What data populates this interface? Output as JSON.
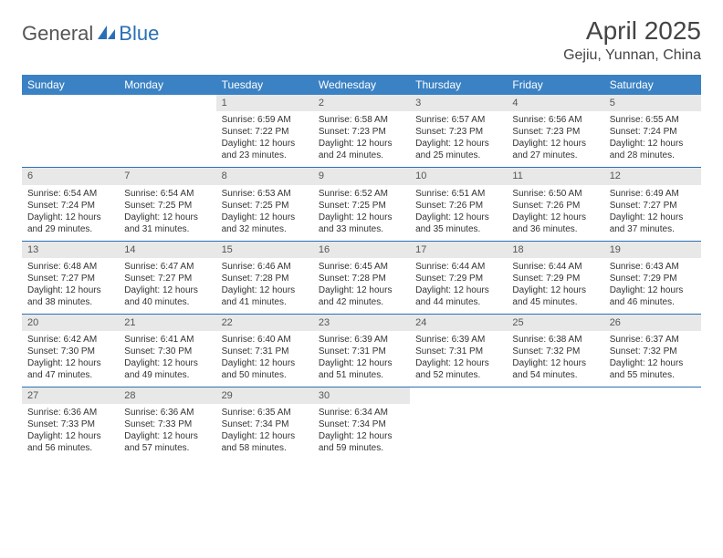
{
  "brand": {
    "text1": "General",
    "text2": "Blue"
  },
  "title": "April 2025",
  "location": "Gejiu, Yunnan, China",
  "colors": {
    "header_bg": "#3b82c4",
    "header_fg": "#ffffff",
    "daynum_bg": "#e8e8e8",
    "rule": "#2a6fb5",
    "logo_gray": "#555555",
    "logo_blue": "#2a6fb5"
  },
  "weekdays": [
    "Sunday",
    "Monday",
    "Tuesday",
    "Wednesday",
    "Thursday",
    "Friday",
    "Saturday"
  ],
  "weeks": [
    [
      null,
      null,
      {
        "n": "1",
        "sr": "6:59 AM",
        "ss": "7:22 PM",
        "dl": "12 hours and 23 minutes."
      },
      {
        "n": "2",
        "sr": "6:58 AM",
        "ss": "7:23 PM",
        "dl": "12 hours and 24 minutes."
      },
      {
        "n": "3",
        "sr": "6:57 AM",
        "ss": "7:23 PM",
        "dl": "12 hours and 25 minutes."
      },
      {
        "n": "4",
        "sr": "6:56 AM",
        "ss": "7:23 PM",
        "dl": "12 hours and 27 minutes."
      },
      {
        "n": "5",
        "sr": "6:55 AM",
        "ss": "7:24 PM",
        "dl": "12 hours and 28 minutes."
      }
    ],
    [
      {
        "n": "6",
        "sr": "6:54 AM",
        "ss": "7:24 PM",
        "dl": "12 hours and 29 minutes."
      },
      {
        "n": "7",
        "sr": "6:54 AM",
        "ss": "7:25 PM",
        "dl": "12 hours and 31 minutes."
      },
      {
        "n": "8",
        "sr": "6:53 AM",
        "ss": "7:25 PM",
        "dl": "12 hours and 32 minutes."
      },
      {
        "n": "9",
        "sr": "6:52 AM",
        "ss": "7:25 PM",
        "dl": "12 hours and 33 minutes."
      },
      {
        "n": "10",
        "sr": "6:51 AM",
        "ss": "7:26 PM",
        "dl": "12 hours and 35 minutes."
      },
      {
        "n": "11",
        "sr": "6:50 AM",
        "ss": "7:26 PM",
        "dl": "12 hours and 36 minutes."
      },
      {
        "n": "12",
        "sr": "6:49 AM",
        "ss": "7:27 PM",
        "dl": "12 hours and 37 minutes."
      }
    ],
    [
      {
        "n": "13",
        "sr": "6:48 AM",
        "ss": "7:27 PM",
        "dl": "12 hours and 38 minutes."
      },
      {
        "n": "14",
        "sr": "6:47 AM",
        "ss": "7:27 PM",
        "dl": "12 hours and 40 minutes."
      },
      {
        "n": "15",
        "sr": "6:46 AM",
        "ss": "7:28 PM",
        "dl": "12 hours and 41 minutes."
      },
      {
        "n": "16",
        "sr": "6:45 AM",
        "ss": "7:28 PM",
        "dl": "12 hours and 42 minutes."
      },
      {
        "n": "17",
        "sr": "6:44 AM",
        "ss": "7:29 PM",
        "dl": "12 hours and 44 minutes."
      },
      {
        "n": "18",
        "sr": "6:44 AM",
        "ss": "7:29 PM",
        "dl": "12 hours and 45 minutes."
      },
      {
        "n": "19",
        "sr": "6:43 AM",
        "ss": "7:29 PM",
        "dl": "12 hours and 46 minutes."
      }
    ],
    [
      {
        "n": "20",
        "sr": "6:42 AM",
        "ss": "7:30 PM",
        "dl": "12 hours and 47 minutes."
      },
      {
        "n": "21",
        "sr": "6:41 AM",
        "ss": "7:30 PM",
        "dl": "12 hours and 49 minutes."
      },
      {
        "n": "22",
        "sr": "6:40 AM",
        "ss": "7:31 PM",
        "dl": "12 hours and 50 minutes."
      },
      {
        "n": "23",
        "sr": "6:39 AM",
        "ss": "7:31 PM",
        "dl": "12 hours and 51 minutes."
      },
      {
        "n": "24",
        "sr": "6:39 AM",
        "ss": "7:31 PM",
        "dl": "12 hours and 52 minutes."
      },
      {
        "n": "25",
        "sr": "6:38 AM",
        "ss": "7:32 PM",
        "dl": "12 hours and 54 minutes."
      },
      {
        "n": "26",
        "sr": "6:37 AM",
        "ss": "7:32 PM",
        "dl": "12 hours and 55 minutes."
      }
    ],
    [
      {
        "n": "27",
        "sr": "6:36 AM",
        "ss": "7:33 PM",
        "dl": "12 hours and 56 minutes."
      },
      {
        "n": "28",
        "sr": "6:36 AM",
        "ss": "7:33 PM",
        "dl": "12 hours and 57 minutes."
      },
      {
        "n": "29",
        "sr": "6:35 AM",
        "ss": "7:34 PM",
        "dl": "12 hours and 58 minutes."
      },
      {
        "n": "30",
        "sr": "6:34 AM",
        "ss": "7:34 PM",
        "dl": "12 hours and 59 minutes."
      },
      null,
      null,
      null
    ]
  ],
  "labels": {
    "sunrise": "Sunrise:",
    "sunset": "Sunset:",
    "daylight": "Daylight:"
  }
}
